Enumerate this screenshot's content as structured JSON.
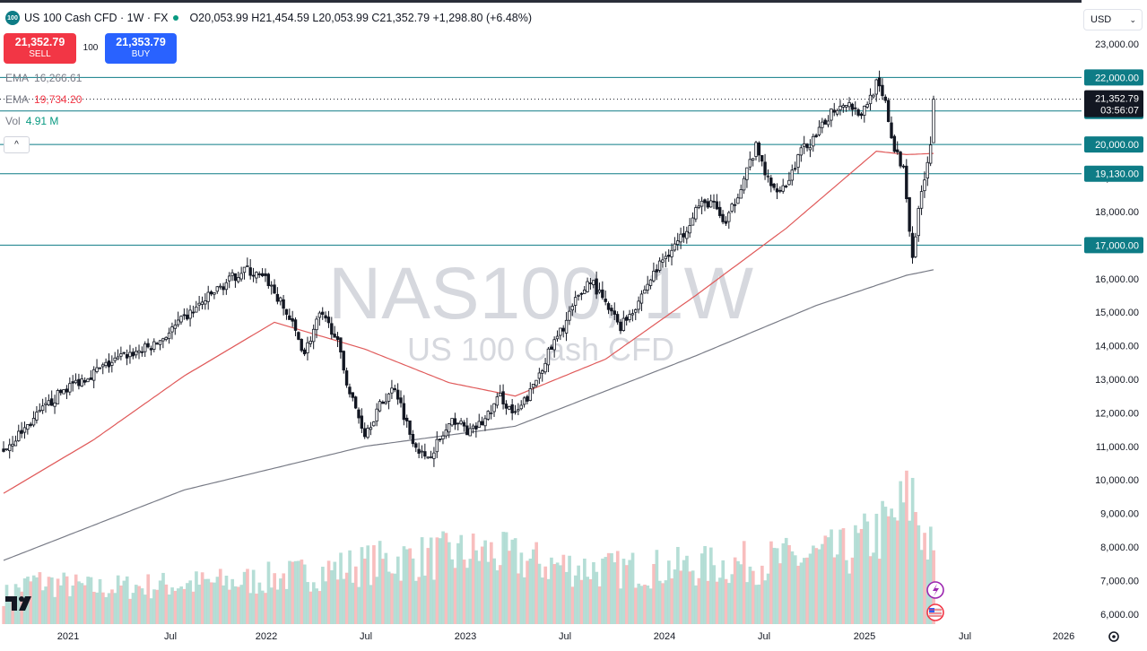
{
  "header": {
    "symbol": "US 100 Cash CFD · 1W · FX",
    "ohlc": "O20,053.99 H21,454.59 L20,053.99 C21,352.79 +1,298.80 (+6.48%)",
    "badge": "100"
  },
  "trade": {
    "sell_price": "21,352.79",
    "sell_label": "SELL",
    "spread": "100",
    "buy_price": "21,353.79",
    "buy_label": "BUY"
  },
  "indicators": [
    {
      "name": "EMA",
      "value": "16,266.61",
      "color": "#787b86"
    },
    {
      "name": "EMA",
      "value": "19,734.20",
      "color": "#f23645"
    },
    {
      "name": "Vol",
      "value": "4.91 M",
      "color": "#089981"
    }
  ],
  "currency": "USD",
  "colors": {
    "up": "#ffffff",
    "down": "#131722",
    "ema_fast": "#e05a5a",
    "ema_slow": "#787b86",
    "hline": "#0e7c86",
    "vol_up": "#a8d8cf",
    "vol_down": "#f7b3b3"
  },
  "chart_data": {
    "type": "candlestick",
    "watermark": {
      "symbol": "NAS100, 1W",
      "name": "US 100 Cash CFD"
    },
    "ylim": [
      5700,
      23400
    ],
    "y_ticks": [
      "6,000.00",
      "7,000.00",
      "8,000.00",
      "9,000.00",
      "10,000.00",
      "11,000.00",
      "12,000.00",
      "13,000.00",
      "14,000.00",
      "15,000.00",
      "16,000.00",
      "17,000.00",
      "18,000.00",
      "19,000.00",
      "20,000.00",
      "21,000.00",
      "22,000.00",
      "23,000.00"
    ],
    "y_tick_values": [
      6000,
      7000,
      8000,
      9000,
      10000,
      11000,
      12000,
      13000,
      14000,
      15000,
      16000,
      17000,
      18000,
      19000,
      20000,
      21000,
      22000,
      23000
    ],
    "x_ticks": [
      "2021",
      "Jul",
      "2022",
      "Jul",
      "2023",
      "Jul",
      "2024",
      "Jul",
      "2025",
      "Jul",
      "2026"
    ],
    "horizontal_levels": [
      {
        "value": 22000,
        "label": "22,000.00"
      },
      {
        "value": 21000,
        "label": "21,000.00"
      },
      {
        "value": 20000,
        "label": "20,000.00"
      },
      {
        "value": 19130,
        "label": "19,130.00"
      },
      {
        "value": 17000,
        "label": "17,000.00"
      }
    ],
    "last_price": {
      "value": 21352.79,
      "label": "21,352.79",
      "countdown": "03:56:07"
    },
    "close_anchors": [
      [
        0,
        10900
      ],
      [
        10,
        11800
      ],
      [
        20,
        12700
      ],
      [
        30,
        13200
      ],
      [
        40,
        13700
      ],
      [
        50,
        14000
      ],
      [
        60,
        14800
      ],
      [
        70,
        15600
      ],
      [
        80,
        16300
      ],
      [
        88,
        15900
      ],
      [
        95,
        14800
      ],
      [
        100,
        13800
      ],
      [
        105,
        14900
      ],
      [
        110,
        14400
      ],
      [
        115,
        12600
      ],
      [
        120,
        11400
      ],
      [
        125,
        12200
      ],
      [
        130,
        12800
      ],
      [
        135,
        11400
      ],
      [
        140,
        10600
      ],
      [
        145,
        11200
      ],
      [
        150,
        11800
      ],
      [
        155,
        11400
      ],
      [
        160,
        11800
      ],
      [
        165,
        12500
      ],
      [
        170,
        11900
      ],
      [
        175,
        12600
      ],
      [
        180,
        13600
      ],
      [
        185,
        14400
      ],
      [
        190,
        15300
      ],
      [
        195,
        16000
      ],
      [
        200,
        15200
      ],
      [
        205,
        14600
      ],
      [
        210,
        15200
      ],
      [
        215,
        16000
      ],
      [
        220,
        16700
      ],
      [
        225,
        17200
      ],
      [
        230,
        18100
      ],
      [
        235,
        18300
      ],
      [
        240,
        17600
      ],
      [
        245,
        18800
      ],
      [
        250,
        19900
      ],
      [
        255,
        18700
      ],
      [
        260,
        18800
      ],
      [
        265,
        19800
      ],
      [
        270,
        20200
      ],
      [
        275,
        21000
      ],
      [
        280,
        21300
      ],
      [
        285,
        20900
      ],
      [
        290,
        21800
      ],
      [
        293,
        21200
      ],
      [
        296,
        19800
      ],
      [
        299,
        19300
      ],
      [
        302,
        16700
      ],
      [
        305,
        18600
      ],
      [
        308,
        20050
      ],
      [
        309,
        21352.79
      ]
    ],
    "ema_fast_anchors": [
      [
        0,
        9600
      ],
      [
        30,
        11200
      ],
      [
        60,
        13100
      ],
      [
        90,
        14700
      ],
      [
        120,
        13900
      ],
      [
        148,
        12900
      ],
      [
        170,
        12500
      ],
      [
        200,
        13600
      ],
      [
        230,
        15500
      ],
      [
        260,
        17500
      ],
      [
        290,
        19800
      ],
      [
        300,
        19700
      ],
      [
        309,
        19734.2
      ]
    ],
    "ema_slow_anchors": [
      [
        0,
        7600
      ],
      [
        60,
        9700
      ],
      [
        120,
        11000
      ],
      [
        170,
        11600
      ],
      [
        230,
        13700
      ],
      [
        270,
        15200
      ],
      [
        300,
        16100
      ],
      [
        309,
        16266.61
      ]
    ],
    "volume_anchors": [
      [
        0,
        2
      ],
      [
        10,
        3
      ],
      [
        30,
        2.5
      ],
      [
        60,
        2.8
      ],
      [
        80,
        3
      ],
      [
        100,
        3.5
      ],
      [
        130,
        4.5
      ],
      [
        160,
        5
      ],
      [
        180,
        4.2
      ],
      [
        200,
        3.8
      ],
      [
        230,
        4
      ],
      [
        260,
        4.5
      ],
      [
        280,
        5
      ],
      [
        295,
        7
      ],
      [
        302,
        9
      ],
      [
        306,
        6
      ],
      [
        309,
        4.91
      ]
    ],
    "bars": 310,
    "x_start": "2020-09-28"
  }
}
